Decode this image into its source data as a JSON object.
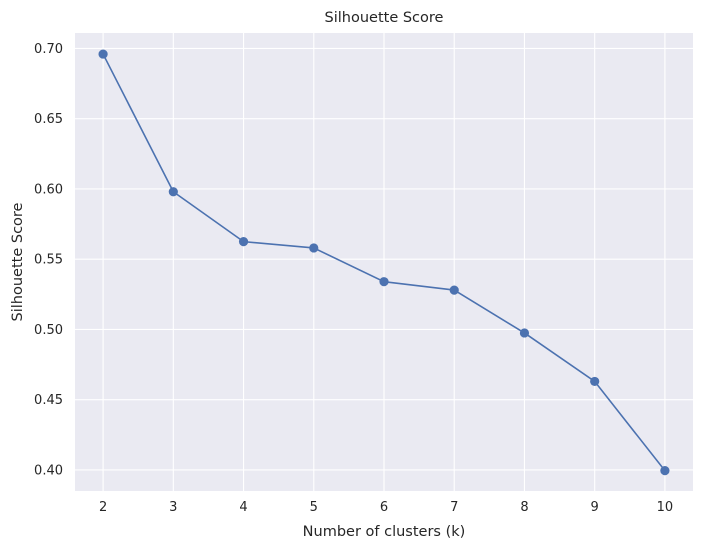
{
  "chart_data": {
    "type": "line",
    "title": "Silhouette Score",
    "xlabel": "Number of clusters (k)",
    "ylabel": "Silhouette Score",
    "x": [
      2,
      3,
      4,
      5,
      6,
      7,
      8,
      9,
      10
    ],
    "series": [
      {
        "values": [
          0.696,
          0.598,
          0.5625,
          0.558,
          0.534,
          0.528,
          0.4975,
          0.463,
          0.3995
        ],
        "color": "#4c72b0",
        "marker": "circle"
      }
    ],
    "x_ticks": [
      2,
      3,
      4,
      5,
      6,
      7,
      8,
      9,
      10
    ],
    "y_ticks": [
      "0.40",
      "0.45",
      "0.50",
      "0.55",
      "0.60",
      "0.65",
      "0.70"
    ],
    "xlim": [
      1.6,
      10.4
    ],
    "ylim": [
      0.385,
      0.711
    ],
    "grid": true,
    "legend": "none",
    "background_color": "#eaeaf2",
    "grid_color": "#ffffff"
  }
}
